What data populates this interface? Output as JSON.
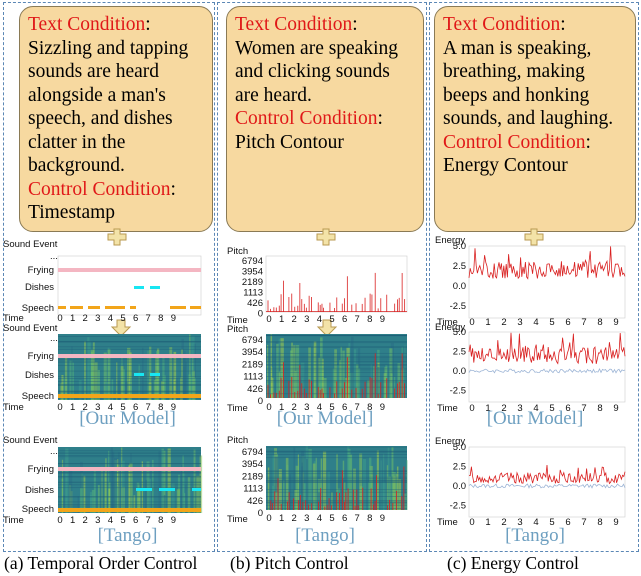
{
  "columns": [
    {
      "text_condition_label": "Text Condition",
      "text_condition_colon": ":",
      "text": "Sizzling and tapping sounds are heard alongside a man's speech, and dishes clatter in the background.",
      "control_condition_label": "Control Condition",
      "control_condition_colon": ":",
      "control": "Timestamp",
      "caption": "(a)  Temporal Order Control"
    },
    {
      "text_condition_label": "Text Condition",
      "text_condition_colon": ":",
      "text": "Women are speaking and clicking sounds are heard.",
      "control_condition_label": "Control Condition",
      "control_condition_colon": ":",
      "control": "Pitch Contour",
      "caption": "(b)  Pitch Control"
    },
    {
      "text_condition_label": "Text Condition",
      "text_condition_colon": ":",
      "text": "A man is speaking, breathing, making beeps and honking sounds, and laughing.",
      "control_condition_label": "Control Condition",
      "control_condition_colon": ":",
      "control": "Energy Contour",
      "caption": "(c) Energy Control"
    }
  ],
  "model_labels": {
    "ours": "[Our Model]",
    "baseline": "[Tango]"
  },
  "colors": {
    "border": "#5b87b5",
    "box": "#f7d9a0",
    "red": "#e01818",
    "pink": "#f4b6c2",
    "cyan": "#18e6f2",
    "orange": "#f2a51a",
    "spec_bg": "#2f7f8a",
    "label_blue": "#6d9fc0"
  },
  "chart_data": [
    {
      "type": "timeline",
      "ylabel": "Sound Event",
      "ytick_top": "...",
      "rows": [
        "Frying",
        "Dishes",
        "Speech"
      ],
      "xlabel": "Time",
      "xticks": [
        "0",
        "1",
        "2",
        "3",
        "4",
        "5",
        "6",
        "7",
        "8",
        "9"
      ]
    },
    {
      "type": "line",
      "ylabel": "Pitch",
      "yticks": [
        "6794",
        "3954",
        "2189",
        "1113",
        "426",
        "0"
      ],
      "xlabel": "Time",
      "xticks": [
        "0",
        "1",
        "2",
        "3",
        "4",
        "5",
        "6",
        "7",
        "8",
        "9"
      ]
    },
    {
      "type": "line",
      "ylabel": "Energy",
      "yticks": [
        "5.0",
        "2.5",
        "0.0",
        "-2.5"
      ],
      "ylim": [
        -4.0,
        5.0
      ],
      "xlabel": "Time",
      "xticks": [
        "0",
        "1",
        "2",
        "3",
        "4",
        "5",
        "6",
        "7",
        "8",
        "9"
      ]
    }
  ]
}
